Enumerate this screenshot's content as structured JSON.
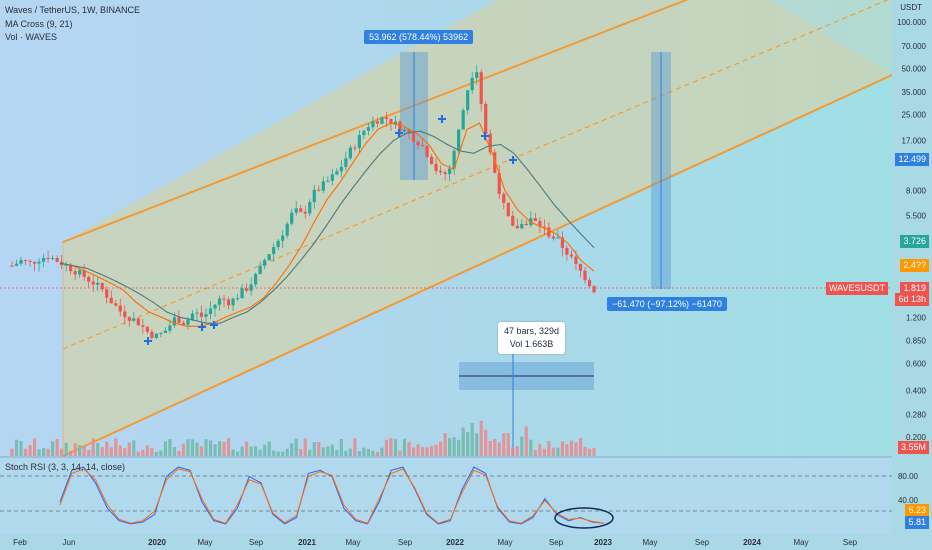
{
  "header": {
    "symbol_title": "Waves / TetherUS, 1W, BINANCE",
    "indicator_ma": "MA Cross (9, 21)",
    "indicator_vol": "Vol · WAVES",
    "currency": "USDT"
  },
  "oscillator": {
    "title": "Stoch RSI (3, 3, 14, 14, close)"
  },
  "chart_data": [
    {
      "type": "line",
      "title": "",
      "xlabel": "",
      "ylabel": "",
      "y_scale": "log",
      "grid": false,
      "x_ticks": [
        "Feb",
        "Jun",
        "2020",
        "May",
        "Sep",
        "2021",
        "May",
        "Sep",
        "2022",
        "May",
        "Sep",
        "2023",
        "May",
        "Sep",
        "2024",
        "May",
        "Sep"
      ],
      "y_ticks": [
        "100.000",
        "70.000",
        "50.000",
        "35.000",
        "25.000",
        "17.000",
        "12.499",
        "8.000",
        "5.500",
        "3.726",
        "1.819",
        "1.200",
        "0.850",
        "0.600",
        "0.400",
        "0.280",
        "0.200"
      ],
      "price_labels": [
        {
          "text": "12.499",
          "color": "#2f80e0"
        },
        {
          "text": "3.726",
          "color": "#26a69a"
        },
        {
          "text": "2.4??",
          "color": "#ff9800"
        },
        {
          "text": "WAVESUSDT",
          "color": "#ef5350"
        },
        {
          "text": "1.819",
          "color": "#ef5350"
        },
        {
          "text": "6d 13h",
          "color": "#ef5350"
        },
        {
          "text": "3.55M",
          "color": "#ef5350"
        }
      ],
      "annotations": [
        {
          "text": "53.962 (578.44%) 53962",
          "kind": "measure-up"
        },
        {
          "text": "−61.470 (−97.12%) −61470",
          "kind": "measure-down"
        },
        {
          "text": "47 bars, 329d",
          "kind": "range"
        },
        {
          "text": "Vol 1.663B",
          "kind": "range"
        }
      ],
      "series": [
        {
          "kind": "price",
          "values": [
            2.6,
            2.8,
            2.7,
            2.9,
            3.0,
            2.8,
            2.6,
            2.4,
            2.2,
            2.0,
            1.8,
            1.5,
            1.3,
            1.2,
            1.1,
            0.95,
            0.9,
            1.0,
            1.2,
            1.1,
            1.3,
            1.2,
            1.4,
            1.6,
            1.5,
            1.7,
            1.9,
            2.3,
            3.0,
            3.6,
            4.5,
            6.0,
            5.5,
            7.5,
            8.5,
            9.5,
            11.0,
            14.0,
            17.0,
            21.0,
            23.0,
            24.0,
            22.0,
            20.0,
            18.0,
            16.0,
            13.0,
            10.0,
            10.5,
            18.0,
            35.0,
            55.0,
            20.0,
            11.0,
            6.5,
            4.5,
            4.8,
            5.2,
            4.8,
            4.2,
            3.8,
            3.2,
            2.6,
            2.2,
            1.82
          ]
        },
        {
          "kind": "ma_fast",
          "values": [
            2.7,
            2.6,
            2.4,
            2.2,
            2.0,
            1.8,
            1.5,
            1.3,
            1.2,
            1.1,
            1.05,
            1.05,
            1.1,
            1.2,
            1.3,
            1.4,
            1.6,
            2.0,
            2.6,
            3.5,
            5.0,
            7.0,
            9.0,
            12.0,
            16.0,
            20.0,
            22.0,
            21.0,
            19.0,
            16.0,
            12.0,
            11.0,
            20.0,
            22.0,
            14.0,
            8.0,
            6.0,
            5.0,
            4.6,
            4.2,
            3.6,
            2.8,
            2.4
          ]
        },
        {
          "kind": "ma_slow",
          "values": [
            2.7,
            2.6,
            2.5,
            2.3,
            2.1,
            1.9,
            1.7,
            1.5,
            1.3,
            1.2,
            1.15,
            1.1,
            1.1,
            1.2,
            1.3,
            1.5,
            1.8,
            2.2,
            2.8,
            3.6,
            4.8,
            6.5,
            8.5,
            11.0,
            14.0,
            17.0,
            19.0,
            19.5,
            18.0,
            16.0,
            14.5,
            14.0,
            15.5,
            16.0,
            14.0,
            11.0,
            8.5,
            6.5,
            5.2,
            4.2,
            3.4
          ]
        }
      ]
    },
    {
      "type": "line",
      "title": "",
      "y_ticks": [
        "80.00",
        "40.00",
        "5.81"
      ],
      "y_label_values": [
        "6.23",
        "5.81"
      ],
      "series": [
        {
          "kind": "stoch_k",
          "values": [
            40,
            90,
            95,
            70,
            30,
            10,
            5,
            8,
            20,
            80,
            95,
            90,
            40,
            10,
            5,
            30,
            80,
            70,
            20,
            5,
            15,
            85,
            90,
            80,
            30,
            10,
            5,
            40,
            90,
            95,
            60,
            20,
            5,
            10,
            60,
            95,
            85,
            30,
            8,
            5,
            15,
            45,
            20,
            10,
            15,
            8,
            6
          ]
        },
        {
          "kind": "stoch_d",
          "values": [
            35,
            85,
            92,
            75,
            35,
            12,
            6,
            10,
            25,
            75,
            92,
            88,
            45,
            12,
            6,
            35,
            75,
            68,
            22,
            7,
            18,
            80,
            88,
            82,
            35,
            12,
            6,
            45,
            85,
            92,
            62,
            22,
            6,
            12,
            55,
            90,
            82,
            32,
            10,
            6,
            18,
            42,
            22,
            12,
            14,
            9,
            6
          ]
        }
      ]
    }
  ]
}
